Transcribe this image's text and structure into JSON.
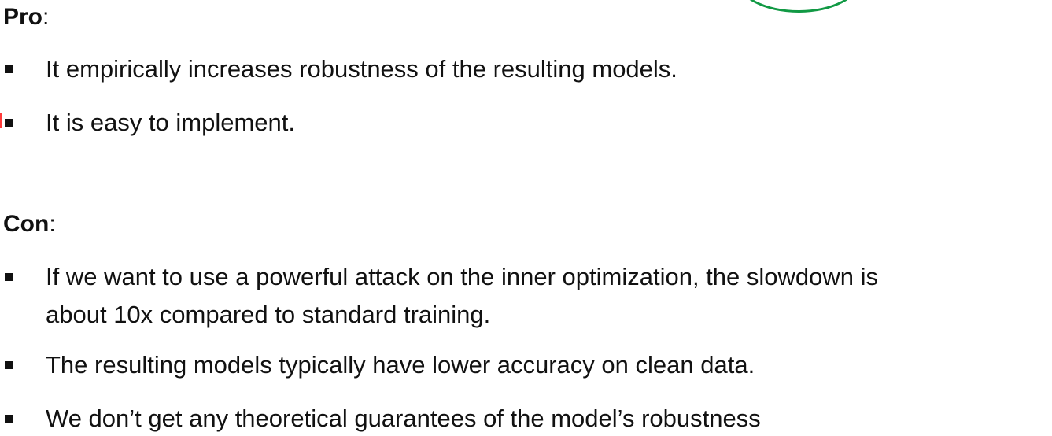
{
  "pro": {
    "heading": "Pro",
    "colon": ":",
    "items": [
      "It empirically increases robustness of the resulting models.",
      "It is easy to implement."
    ]
  },
  "con": {
    "heading": "Con",
    "colon": ":",
    "items": [
      "If we want to use a powerful attack on the inner optimization, the slowdown is",
      "about 10x compared to standard training.",
      "The resulting models typically have lower accuracy on clean data.",
      "We don’t get any theoretical guarantees of the model’s robustness"
    ]
  },
  "colors": {
    "text": "#111111",
    "annotation_arc": "#119944",
    "annotation_mark": "#ff3b3b"
  }
}
